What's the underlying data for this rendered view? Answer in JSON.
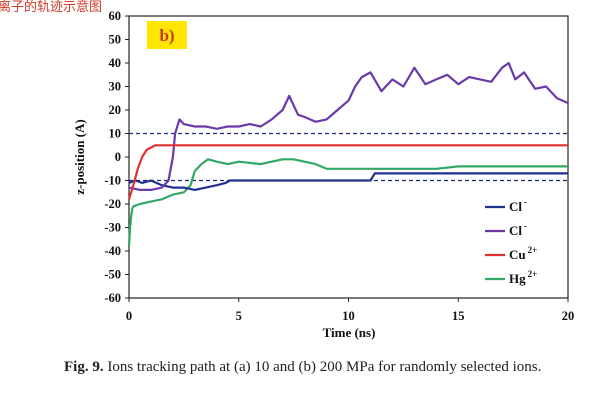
{
  "top_title_fragment": "离子的轨迹示意图",
  "caption": {
    "fig_label": "Fig. 9.",
    "text": " Ions tracking path at (a) 10 and (b) 200 MPa for randomly selected ions."
  },
  "chart_data": {
    "type": "line",
    "panel_label": "b)",
    "xlabel": "Time (ns)",
    "ylabel": "z-position (A)",
    "xlim": [
      0,
      20
    ],
    "ylim": [
      -60,
      60
    ],
    "xticks": [
      0,
      5,
      10,
      15,
      20
    ],
    "yticks": [
      -60,
      -50,
      -40,
      -30,
      -20,
      -10,
      0,
      10,
      20,
      30,
      40,
      50,
      60
    ],
    "reference_lines": [
      10,
      -10
    ],
    "grid": false,
    "legend_position": "lower-right",
    "series": [
      {
        "name": "Cl",
        "superscript": "-",
        "color": "#1f2f8f",
        "x": [
          0,
          0.3,
          0.6,
          1.0,
          1.5,
          2.0,
          2.5,
          3.0,
          3.5,
          4.0,
          4.4,
          4.6,
          5,
          6,
          7,
          8,
          9,
          10,
          11.0,
          11.2,
          12,
          13,
          14,
          15,
          16,
          17,
          18,
          19,
          20
        ],
        "y": [
          -11,
          -10,
          -11,
          -10,
          -12,
          -13,
          -13,
          -14,
          -13,
          -12,
          -11,
          -10,
          -10,
          -10,
          -10,
          -10,
          -10,
          -10,
          -10,
          -7,
          -7,
          -7,
          -7,
          -7,
          -7,
          -7,
          -7,
          -7,
          -7
        ]
      },
      {
        "name": "Cl",
        "superscript": "-",
        "color": "#6a3aa8",
        "x": [
          0,
          0.5,
          1.0,
          1.5,
          1.8,
          2.0,
          2.1,
          2.3,
          2.5,
          3,
          3.5,
          4,
          4.5,
          5,
          5.5,
          6,
          6.5,
          7,
          7.3,
          7.7,
          8,
          8.5,
          9,
          9.5,
          10,
          10.3,
          10.6,
          11,
          11.5,
          12,
          12.5,
          13,
          13.5,
          14,
          14.5,
          15,
          15.5,
          16,
          16.5,
          17,
          17.3,
          17.6,
          18,
          18.5,
          19,
          19.5,
          20
        ],
        "y": [
          -13,
          -14,
          -14,
          -13,
          -10,
          0,
          10,
          16,
          14,
          13,
          13,
          12,
          13,
          13,
          14,
          13,
          16,
          20,
          26,
          18,
          17,
          15,
          16,
          20,
          24,
          30,
          34,
          36,
          28,
          33,
          30,
          38,
          31,
          33,
          35,
          31,
          34,
          33,
          32,
          38,
          40,
          33,
          36,
          29,
          30,
          25,
          23
        ]
      },
      {
        "name": "Cu",
        "superscript": "2+",
        "color": "#e03030",
        "x": [
          0,
          0.2,
          0.4,
          0.6,
          0.8,
          1.0,
          1.2,
          1.5,
          2,
          5,
          10,
          15,
          20
        ],
        "y": [
          -18,
          -12,
          -5,
          0,
          3,
          4,
          5,
          5,
          5,
          5,
          5,
          5,
          5
        ]
      },
      {
        "name": "Hg",
        "superscript": "2+",
        "color": "#33a866",
        "x": [
          0,
          0.05,
          0.1,
          0.15,
          0.2,
          0.5,
          1.0,
          1.5,
          2.0,
          2.5,
          2.8,
          3.0,
          3.3,
          3.6,
          4.0,
          4.5,
          5,
          6,
          7,
          7.5,
          8,
          8.5,
          9,
          10,
          11,
          12,
          13,
          14,
          15,
          16,
          17,
          18,
          19,
          20
        ],
        "y": [
          -38,
          -30,
          -25,
          -22,
          -21,
          -20,
          -19,
          -18,
          -16,
          -15,
          -12,
          -6,
          -3,
          -1,
          -2,
          -3,
          -2,
          -3,
          -1,
          -1,
          -2,
          -3,
          -5,
          -5,
          -5,
          -5,
          -5,
          -5,
          -4,
          -4,
          -4,
          -4,
          -4,
          -4
        ]
      }
    ]
  }
}
